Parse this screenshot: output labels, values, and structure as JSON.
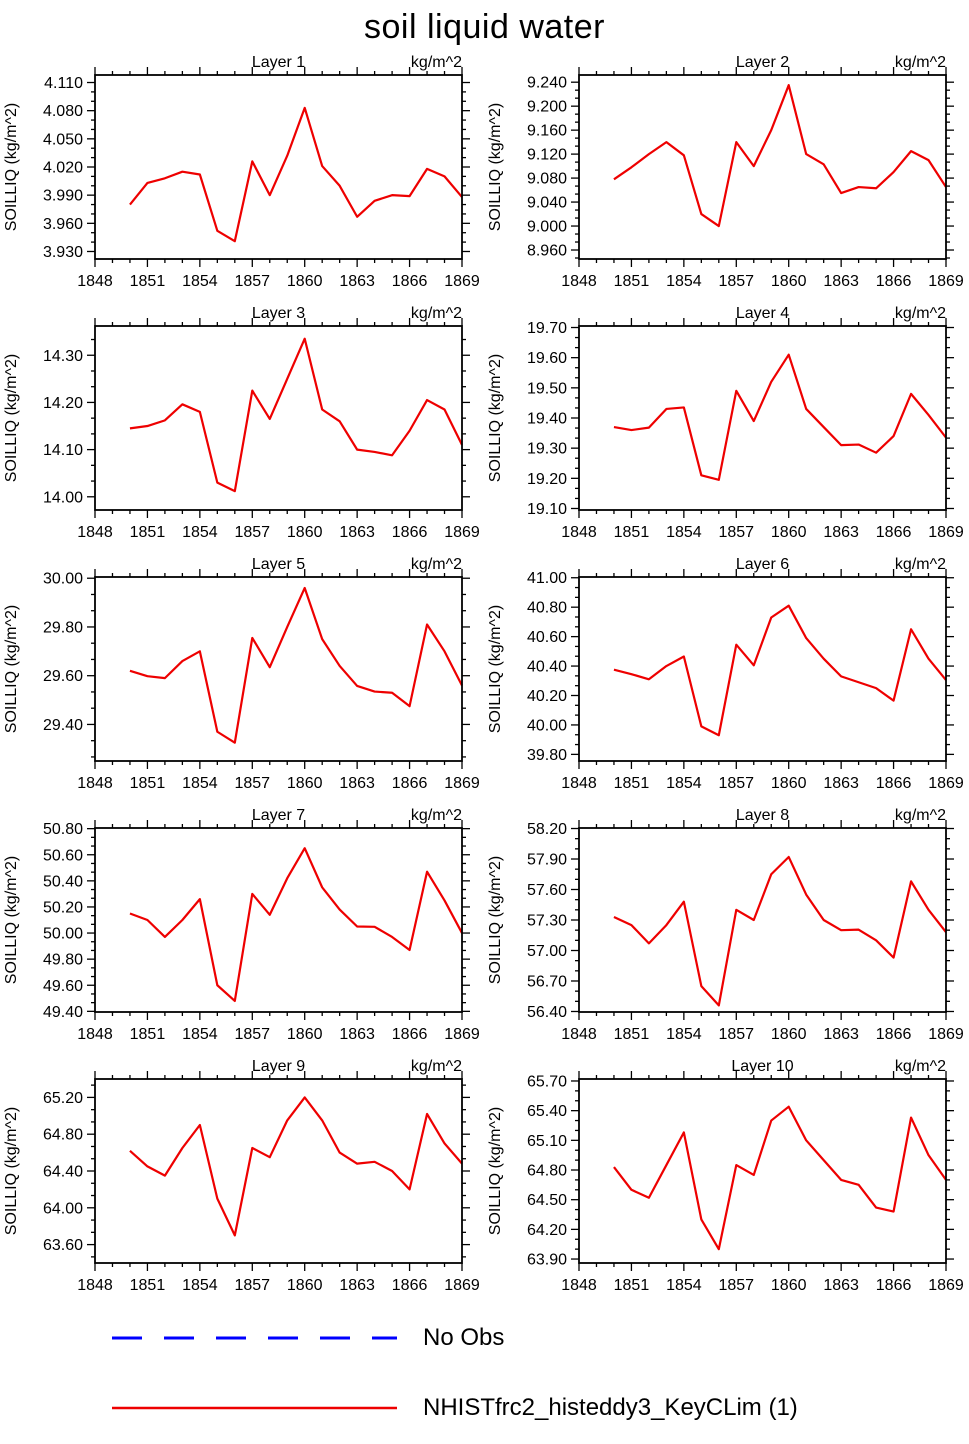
{
  "page_title": "soil liquid water",
  "legend": {
    "no_obs_label": "No Obs",
    "series_label": "NHISTfrc2_histeddy3_KeyCLim (1)",
    "no_obs_color": "#0000ff",
    "series_color": "#ee0000"
  },
  "chart_data": [
    {
      "type": "line",
      "title": "Layer 1",
      "units": "kg/m^2",
      "ylabel": "SOILLIQ  (kg/m^2)",
      "x": [
        1850,
        1851,
        1852,
        1853,
        1854,
        1855,
        1856,
        1857,
        1858,
        1859,
        1860,
        1861,
        1862,
        1863,
        1864,
        1865,
        1866,
        1867,
        1868,
        1869
      ],
      "values": [
        3.98,
        4.003,
        4.008,
        4.015,
        4.012,
        3.952,
        3.941,
        4.026,
        3.99,
        4.032,
        4.083,
        4.021,
        4.0,
        3.967,
        3.984,
        3.99,
        3.989,
        4.018,
        4.01,
        3.988
      ],
      "xlim": [
        1848,
        1869
      ],
      "ylim": [
        3.922,
        4.118
      ],
      "xticks": [
        1848,
        1851,
        1854,
        1857,
        1860,
        1863,
        1866,
        1869
      ],
      "yticks": [
        3.93,
        3.96,
        3.99,
        4.02,
        4.05,
        4.08,
        4.11
      ],
      "y_decimals": 3,
      "line_color": "#ee0000"
    },
    {
      "type": "line",
      "title": "Layer 2",
      "units": "kg/m^2",
      "ylabel": "SOILLIQ  (kg/m^2)",
      "x": [
        1850,
        1851,
        1852,
        1853,
        1854,
        1855,
        1856,
        1857,
        1858,
        1859,
        1860,
        1861,
        1862,
        1863,
        1864,
        1865,
        1866,
        1867,
        1868,
        1869
      ],
      "values": [
        9.078,
        9.098,
        9.12,
        9.14,
        9.118,
        9.02,
        9.0,
        9.14,
        9.1,
        9.16,
        9.235,
        9.12,
        9.103,
        9.055,
        9.065,
        9.063,
        9.09,
        9.125,
        9.11,
        9.065
      ],
      "xlim": [
        1848,
        1869
      ],
      "ylim": [
        8.945,
        9.252
      ],
      "xticks": [
        1848,
        1851,
        1854,
        1857,
        1860,
        1863,
        1866,
        1869
      ],
      "yticks": [
        8.96,
        9.0,
        9.04,
        9.08,
        9.12,
        9.16,
        9.2,
        9.24
      ],
      "y_decimals": 3,
      "line_color": "#ee0000"
    },
    {
      "type": "line",
      "title": "Layer 3",
      "units": "kg/m^2",
      "ylabel": "SOILLIQ  (kg/m^2)",
      "x": [
        1850,
        1851,
        1852,
        1853,
        1854,
        1855,
        1856,
        1857,
        1858,
        1859,
        1860,
        1861,
        1862,
        1863,
        1864,
        1865,
        1866,
        1867,
        1868,
        1869
      ],
      "values": [
        14.145,
        14.15,
        14.162,
        14.196,
        14.18,
        14.03,
        14.012,
        14.225,
        14.165,
        14.25,
        14.335,
        14.185,
        14.16,
        14.1,
        14.095,
        14.088,
        14.14,
        14.205,
        14.185,
        14.11
      ],
      "xlim": [
        1848,
        1869
      ],
      "ylim": [
        13.972,
        14.362
      ],
      "xticks": [
        1848,
        1851,
        1854,
        1857,
        1860,
        1863,
        1866,
        1869
      ],
      "yticks": [
        14.0,
        14.1,
        14.2,
        14.3
      ],
      "y_decimals": 2,
      "line_color": "#ee0000"
    },
    {
      "type": "line",
      "title": "Layer 4",
      "units": "kg/m^2",
      "ylabel": "SOILLIQ  (kg/m^2)",
      "x": [
        1850,
        1851,
        1852,
        1853,
        1854,
        1855,
        1856,
        1857,
        1858,
        1859,
        1860,
        1861,
        1862,
        1863,
        1864,
        1865,
        1866,
        1867,
        1868,
        1869
      ],
      "values": [
        19.37,
        19.36,
        19.368,
        19.43,
        19.435,
        19.21,
        19.195,
        19.49,
        19.39,
        19.52,
        19.61,
        19.43,
        19.37,
        19.31,
        19.312,
        19.285,
        19.34,
        19.48,
        19.41,
        19.335
      ],
      "xlim": [
        1848,
        1869
      ],
      "ylim": [
        19.095,
        19.705
      ],
      "xticks": [
        1848,
        1851,
        1854,
        1857,
        1860,
        1863,
        1866,
        1869
      ],
      "yticks": [
        19.1,
        19.2,
        19.3,
        19.4,
        19.5,
        19.6,
        19.7
      ],
      "y_decimals": 2,
      "line_color": "#ee0000"
    },
    {
      "type": "line",
      "title": "Layer 5",
      "units": "kg/m^2",
      "ylabel": "SOILLIQ  (kg/m^2)",
      "x": [
        1850,
        1851,
        1852,
        1853,
        1854,
        1855,
        1856,
        1857,
        1858,
        1859,
        1860,
        1861,
        1862,
        1863,
        1864,
        1865,
        1866,
        1867,
        1868,
        1869
      ],
      "values": [
        29.62,
        29.598,
        29.59,
        29.66,
        29.7,
        29.37,
        29.325,
        29.755,
        29.635,
        29.8,
        29.96,
        29.75,
        29.64,
        29.558,
        29.535,
        29.53,
        29.475,
        29.81,
        29.7,
        29.56
      ],
      "xlim": [
        1848,
        1869
      ],
      "ylim": [
        29.25,
        30.005
      ],
      "xticks": [
        1848,
        1851,
        1854,
        1857,
        1860,
        1863,
        1866,
        1869
      ],
      "yticks": [
        29.4,
        29.6,
        29.8,
        30.0
      ],
      "y_decimals": 2,
      "line_color": "#ee0000"
    },
    {
      "type": "line",
      "title": "Layer 6",
      "units": "kg/m^2",
      "ylabel": "SOILLIQ  (kg/m^2)",
      "x": [
        1850,
        1851,
        1852,
        1853,
        1854,
        1855,
        1856,
        1857,
        1858,
        1859,
        1860,
        1861,
        1862,
        1863,
        1864,
        1865,
        1866,
        1867,
        1868,
        1869
      ],
      "values": [
        40.375,
        40.345,
        40.31,
        40.4,
        40.465,
        39.99,
        39.93,
        40.545,
        40.405,
        40.73,
        40.81,
        40.59,
        40.45,
        40.33,
        40.29,
        40.25,
        40.165,
        40.65,
        40.45,
        40.305
      ],
      "xlim": [
        1848,
        1869
      ],
      "ylim": [
        39.755,
        41.005
      ],
      "xticks": [
        1848,
        1851,
        1854,
        1857,
        1860,
        1863,
        1866,
        1869
      ],
      "yticks": [
        39.8,
        40.0,
        40.2,
        40.4,
        40.6,
        40.8,
        41.0
      ],
      "y_decimals": 2,
      "line_color": "#ee0000"
    },
    {
      "type": "line",
      "title": "Layer 7",
      "units": "kg/m^2",
      "ylabel": "SOILLIQ  (kg/m^2)",
      "x": [
        1850,
        1851,
        1852,
        1853,
        1854,
        1855,
        1856,
        1857,
        1858,
        1859,
        1860,
        1861,
        1862,
        1863,
        1864,
        1865,
        1866,
        1867,
        1868,
        1869
      ],
      "values": [
        50.15,
        50.1,
        49.97,
        50.1,
        50.26,
        49.6,
        49.48,
        50.3,
        50.14,
        50.42,
        50.65,
        50.35,
        50.18,
        50.05,
        50.048,
        49.97,
        49.87,
        50.47,
        50.25,
        50.0
      ],
      "xlim": [
        1848,
        1869
      ],
      "ylim": [
        49.395,
        50.805
      ],
      "xticks": [
        1848,
        1851,
        1854,
        1857,
        1860,
        1863,
        1866,
        1869
      ],
      "yticks": [
        49.4,
        49.6,
        49.8,
        50.0,
        50.2,
        50.4,
        50.6,
        50.8
      ],
      "y_decimals": 2,
      "line_color": "#ee0000"
    },
    {
      "type": "line",
      "title": "Layer 8",
      "units": "kg/m^2",
      "ylabel": "SOILLIQ  (kg/m^2)",
      "x": [
        1850,
        1851,
        1852,
        1853,
        1854,
        1855,
        1856,
        1857,
        1858,
        1859,
        1860,
        1861,
        1862,
        1863,
        1864,
        1865,
        1866,
        1867,
        1868,
        1869
      ],
      "values": [
        57.33,
        57.25,
        57.07,
        57.25,
        57.48,
        56.65,
        56.46,
        57.4,
        57.3,
        57.75,
        57.92,
        57.55,
        57.3,
        57.2,
        57.205,
        57.1,
        56.93,
        57.68,
        57.4,
        57.18
      ],
      "xlim": [
        1848,
        1869
      ],
      "ylim": [
        56.395,
        58.205
      ],
      "xticks": [
        1848,
        1851,
        1854,
        1857,
        1860,
        1863,
        1866,
        1869
      ],
      "yticks": [
        56.4,
        56.7,
        57.0,
        57.3,
        57.6,
        57.9,
        58.2
      ],
      "y_decimals": 2,
      "line_color": "#ee0000"
    },
    {
      "type": "line",
      "title": "Layer 9",
      "units": "kg/m^2",
      "ylabel": "SOILLIQ  (kg/m^2)",
      "x": [
        1850,
        1851,
        1852,
        1853,
        1854,
        1855,
        1856,
        1857,
        1858,
        1859,
        1860,
        1861,
        1862,
        1863,
        1864,
        1865,
        1866,
        1867,
        1868,
        1869
      ],
      "values": [
        64.62,
        64.45,
        64.35,
        64.65,
        64.9,
        64.1,
        63.7,
        64.65,
        64.55,
        64.95,
        65.2,
        64.95,
        64.6,
        64.48,
        64.5,
        64.4,
        64.2,
        65.02,
        64.7,
        64.48
      ],
      "xlim": [
        1848,
        1869
      ],
      "ylim": [
        63.4,
        65.4
      ],
      "xticks": [
        1848,
        1851,
        1854,
        1857,
        1860,
        1863,
        1866,
        1869
      ],
      "yticks": [
        63.6,
        64.0,
        64.4,
        64.8,
        65.2
      ],
      "y_decimals": 2,
      "line_color": "#ee0000"
    },
    {
      "type": "line",
      "title": "Layer 10",
      "units": "kg/m^2",
      "ylabel": "SOILLIQ  (kg/m^2)",
      "x": [
        1850,
        1851,
        1852,
        1853,
        1854,
        1855,
        1856,
        1857,
        1858,
        1859,
        1860,
        1861,
        1862,
        1863,
        1864,
        1865,
        1866,
        1867,
        1868,
        1869
      ],
      "values": [
        64.83,
        64.6,
        64.52,
        64.85,
        65.18,
        64.3,
        64.0,
        64.85,
        64.75,
        65.3,
        65.44,
        65.1,
        64.9,
        64.7,
        64.65,
        64.42,
        64.38,
        65.33,
        64.95,
        64.7
      ],
      "xlim": [
        1848,
        1869
      ],
      "ylim": [
        63.86,
        65.72
      ],
      "xticks": [
        1848,
        1851,
        1854,
        1857,
        1860,
        1863,
        1866,
        1869
      ],
      "yticks": [
        63.9,
        64.2,
        64.5,
        64.8,
        65.1,
        65.4,
        65.7
      ],
      "y_decimals": 2,
      "line_color": "#ee0000"
    }
  ]
}
